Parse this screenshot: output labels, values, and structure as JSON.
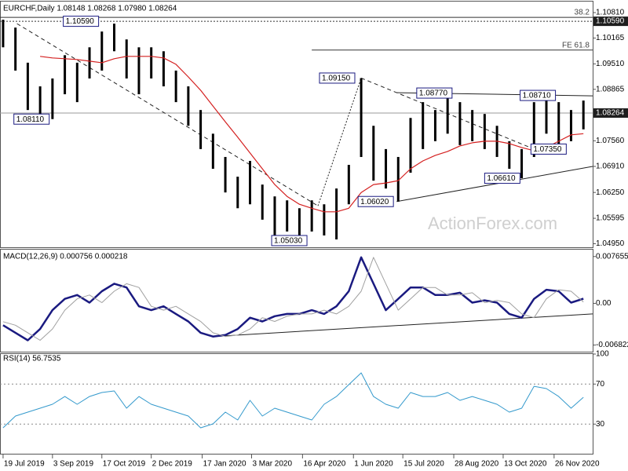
{
  "chart_data": [
    {
      "type": "hilo",
      "title": "EURCHF,Daily  1.08148 1.08268 1.07980 1.08264",
      "watermark": "ActionForex.com",
      "color": "#000000",
      "xlim": [
        -2,
        382
      ],
      "x": [
        0,
        8,
        16,
        24,
        32,
        40,
        48,
        56,
        64,
        72,
        80,
        88,
        96,
        104,
        112,
        120,
        128,
        136,
        144,
        152,
        160,
        168,
        176,
        184,
        192,
        200,
        208,
        216,
        224,
        232,
        240,
        248,
        256,
        264,
        272,
        280,
        288,
        296,
        304,
        312,
        320,
        328,
        336,
        344,
        352,
        360,
        368,
        376
      ],
      "highs": [
        1.1063,
        1.1043,
        1.0954,
        1.0894,
        1.0914,
        1.0973,
        1.0954,
        1.0993,
        1.1033,
        1.1053,
        1.1013,
        1.0993,
        1.0993,
        1.0983,
        1.0934,
        1.0894,
        1.0834,
        1.0774,
        1.0715,
        1.0665,
        1.0705,
        1.0645,
        1.0615,
        1.0605,
        1.0585,
        1.0605,
        1.0595,
        1.0635,
        1.0695,
        1.0915,
        1.0794,
        1.0735,
        1.0715,
        1.0814,
        1.0854,
        1.0834,
        1.0877,
        1.0854,
        1.0834,
        1.0824,
        1.0794,
        1.0755,
        1.0735,
        1.0854,
        1.0871,
        1.0854,
        1.0834,
        1.0858
      ],
      "lows": [
        1.0993,
        1.0934,
        1.0834,
        1.0814,
        1.0811,
        1.0874,
        1.0854,
        1.0914,
        1.0934,
        1.0983,
        1.0914,
        1.0874,
        1.0914,
        1.0894,
        1.0854,
        1.0794,
        1.0735,
        1.0685,
        1.0625,
        1.0585,
        1.0595,
        1.0556,
        1.0503,
        1.0526,
        1.0516,
        1.0526,
        1.0516,
        1.0506,
        1.0595,
        1.0715,
        1.0655,
        1.0635,
        1.0602,
        1.0675,
        1.0735,
        1.0755,
        1.0774,
        1.0745,
        1.0755,
        1.0735,
        1.0715,
        1.0685,
        1.0661,
        1.0715,
        1.0774,
        1.0735,
        1.0755,
        1.0785
      ],
      "ma": {
        "color": "#d42020",
        "values": [
          null,
          null,
          null,
          1.097,
          1.0966,
          1.0964,
          1.0962,
          1.0958,
          1.0954,
          1.0964,
          1.097,
          1.097,
          1.097,
          1.0966,
          1.095,
          1.0918,
          1.0884,
          1.0844,
          1.0804,
          1.0765,
          1.0725,
          1.0685,
          1.0645,
          1.0615,
          1.0595,
          1.0585,
          1.0576,
          1.0576,
          1.0585,
          1.0625,
          1.0645,
          1.0649,
          1.0655,
          1.0685,
          1.0705,
          1.0719,
          1.0729,
          1.0743,
          1.0751,
          1.0755,
          1.0755,
          1.0749,
          1.0739,
          1.0731,
          1.0739,
          1.0755,
          1.0771,
          1.0774
        ]
      },
      "ylim": [
        1.049,
        1.1103
      ],
      "yticks": [
        {
          "value": 1.1081,
          "label": "1.10810"
        },
        {
          "value": 1.10165,
          "label": "1.10165"
        },
        {
          "value": 1.0951,
          "label": "1.09510"
        },
        {
          "value": 1.08865,
          "label": "1.08865"
        },
        {
          "value": 1.0756,
          "label": "1.07560"
        },
        {
          "value": 1.0691,
          "label": "1.06910"
        },
        {
          "value": 1.0625,
          "label": "1.06250"
        },
        {
          "value": 1.05595,
          "label": "1.05595"
        },
        {
          "value": 1.0495,
          "label": "1.04950"
        }
      ],
      "levels": [
        {
          "value": 1.1069,
          "label": "38.2",
          "style": "solid"
        },
        {
          "value": 1.1059,
          "label": "1.10590",
          "style": "dotted",
          "boxed": true
        },
        {
          "value": 1.0986,
          "label": "FE 61.8",
          "style": "solid",
          "from": 200
        },
        {
          "value": 1.08264,
          "label": "1.08264",
          "style": "solid",
          "boxed": true
        }
      ],
      "annotations": [
        {
          "x": 39,
          "value": 1.1059,
          "label": "1.10590"
        },
        {
          "x": 7,
          "value": 1.0811,
          "label": "1.08110"
        },
        {
          "x": 205,
          "value": 1.0915,
          "label": "1.09150"
        },
        {
          "x": 268,
          "value": 1.0877,
          "label": "1.08770"
        },
        {
          "x": 335,
          "value": 1.0871,
          "label": "1.08710"
        },
        {
          "x": 342,
          "value": 1.0735,
          "label": "1.07350"
        },
        {
          "x": 312,
          "value": 1.0661,
          "label": "1.06610"
        },
        {
          "x": 230,
          "value": 1.0602,
          "label": "1.06020"
        },
        {
          "x": 174,
          "value": 1.0503,
          "label": "1.05030"
        }
      ],
      "trendlines": [
        {
          "points": [
            [
              9,
              1.1053
            ],
            [
              204,
              1.0591
            ]
          ],
          "style": "dashed"
        },
        {
          "points": [
            [
              204,
              1.0591
            ],
            [
              232,
              1.0915
            ]
          ],
          "style": "dotted"
        },
        {
          "points": [
            [
              232,
              1.0915
            ],
            [
              344,
              1.0735
            ]
          ],
          "style": "dashed"
        },
        {
          "points": [
            [
              255,
              1.0602
            ],
            [
              382,
              1.0691
            ]
          ],
          "style": "solid"
        },
        {
          "points": [
            [
              255,
              1.0878
            ],
            [
              382,
              1.087
            ]
          ],
          "style": "solid"
        }
      ]
    },
    {
      "type": "line",
      "title": "MACD(12,26,9) 0.000756 0.000218",
      "ylim": [
        -0.00765,
        0.0084
      ],
      "yticks": [
        0.007655,
        {
          "value": 0,
          "label": "0.00"
        },
        -0.006822
      ],
      "series": [
        {
          "color": "#1a1a80",
          "width": 2.5,
          "values": [
            -0.00358,
            -0.00481,
            -0.00605,
            -0.0042,
            -0.00111,
            0.00074,
            0.00136,
            0.00012,
            0.00198,
            0.00321,
            0.00259,
            -0.00049,
            -0.00111,
            -0.00049,
            -0.00173,
            -0.00296,
            -0.00481,
            -0.00543,
            -0.00519,
            -0.0042,
            -0.00235,
            -0.00296,
            -0.0021,
            -0.00173,
            -0.00173,
            -0.00111,
            -0.00173,
            -0.00049,
            0.00198,
            0.00753,
            0.00321,
            -0.00111,
            0.00074,
            0.00259,
            0.00259,
            0.00136,
            0.00136,
            0.00173,
            0.00012,
            0.00049,
            0.00012,
            -0.00173,
            -0.00235,
            0.00074,
            0.00222,
            0.00198,
            0.00012,
            0.00076
          ]
        },
        {
          "color": "#a0a0a0",
          "width": 1,
          "values": [
            -0.003,
            -0.00358,
            -0.00481,
            -0.00605,
            -0.0042,
            -0.00111,
            0.00074,
            0.00136,
            0.00012,
            0.00198,
            0.00321,
            0.00259,
            -0.00049,
            -0.00111,
            -0.00049,
            -0.00173,
            -0.00296,
            -0.00481,
            -0.00543,
            -0.00519,
            -0.0042,
            -0.00235,
            -0.00296,
            -0.0021,
            -0.00173,
            -0.00173,
            -0.00111,
            -0.00173,
            -0.00049,
            0.00198,
            0.00753,
            0.00321,
            -0.00111,
            0.00074,
            0.00259,
            0.00259,
            0.00136,
            0.00136,
            0.00173,
            0.00012,
            0.00049,
            0.00012,
            -0.00173,
            -0.00235,
            0.00074,
            0.00222,
            0.00198,
            0.00022
          ]
        }
      ],
      "trendlines": [
        {
          "points": [
            [
              136,
              -0.00543
            ],
            [
              382,
              -0.00173
            ]
          ],
          "style": "solid"
        }
      ]
    },
    {
      "type": "line",
      "title": "RSI(14) 56.7535",
      "ylim": [
        0,
        100
      ],
      "yticks": [
        100,
        70,
        30
      ],
      "levels": [
        70,
        30
      ],
      "series": [
        {
          "color": "#3399cc",
          "width": 1,
          "values": [
            26.3,
            38,
            42,
            45.9,
            49.8,
            57.6,
            49.8,
            57.6,
            61.6,
            63.1,
            45.9,
            57.6,
            49.8,
            45.9,
            42,
            38,
            26.3,
            30.2,
            42,
            34.1,
            53.7,
            38,
            45.9,
            42,
            38,
            34.1,
            49.8,
            57.6,
            69.4,
            81.2,
            57.6,
            49.8,
            45.9,
            61.6,
            57.6,
            57.6,
            61.6,
            53.7,
            57.6,
            53.7,
            49.8,
            42,
            45.9,
            67.8,
            65.5,
            57.6,
            45.9,
            56.8
          ]
        }
      ],
      "xticks": [
        {
          "value": 0,
          "label": "19 Jul 2019"
        },
        {
          "value": 32,
          "label": "3 Sep 2019"
        },
        {
          "value": 64,
          "label": "17 Oct 2019"
        },
        {
          "value": 96,
          "label": "2 Dec 2019"
        },
        {
          "value": 129,
          "label": "17 Jan 2020"
        },
        {
          "value": 161,
          "label": "3 Mar 2020"
        },
        {
          "value": 194,
          "label": "16 Apr 2020"
        },
        {
          "value": 227,
          "label": "1 Jun 2020"
        },
        {
          "value": 259,
          "label": "15 Jul 2020"
        },
        {
          "value": 292,
          "label": "28 Aug 2020"
        },
        {
          "value": 324,
          "label": "13 Oct 2020"
        },
        {
          "value": 357,
          "label": "26 Nov 2020"
        }
      ]
    }
  ]
}
